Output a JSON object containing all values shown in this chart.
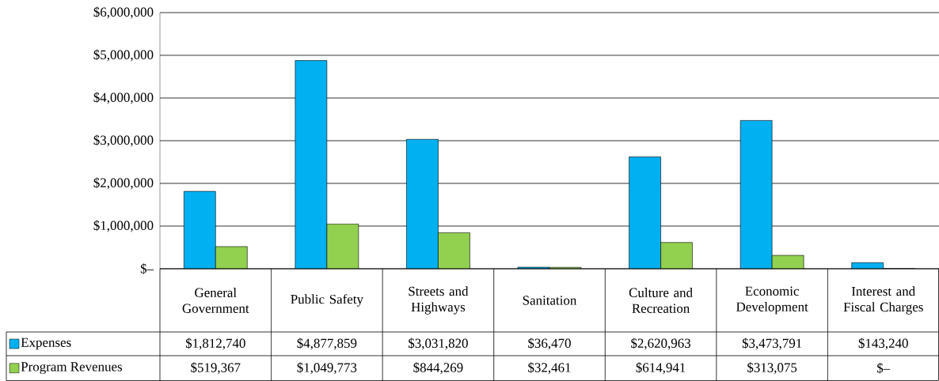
{
  "chart_data": {
    "type": "bar",
    "categories": [
      "General Government",
      "Public Safety",
      "Streets and Highways",
      "Sanitation",
      "Culture and Recreation",
      "Economic Development",
      "Interest and Fiscal Charges"
    ],
    "series": [
      {
        "name": "Expenses",
        "color": "#00b0f0",
        "values": [
          1812740,
          4877859,
          3031820,
          36470,
          2620963,
          3473791,
          143240
        ],
        "value_labels": [
          "$1,812,740",
          "$4,877,859",
          "$3,031,820",
          "$36,470",
          "$2,620,963",
          "$3,473,791",
          "$143,240"
        ]
      },
      {
        "name": "Program Revenues",
        "color": "#92d050",
        "values": [
          519367,
          1049773,
          844269,
          32461,
          614941,
          313075,
          0
        ],
        "value_labels": [
          "$519,367",
          "$1,049,773",
          "$844,269",
          "$32,461",
          "$614,941",
          "$313,075",
          "$–"
        ]
      }
    ],
    "ylim": [
      0,
      6000000
    ],
    "yticks": [
      {
        "value": 0,
        "label": "$–"
      },
      {
        "value": 1000000,
        "label": "$1,000,000"
      },
      {
        "value": 2000000,
        "label": "$2,000,000"
      },
      {
        "value": 3000000,
        "label": "$3,000,000"
      },
      {
        "value": 4000000,
        "label": "$4,000,000"
      },
      {
        "value": 5000000,
        "label": "$5,000,000"
      },
      {
        "value": 6000000,
        "label": "$6,000,000"
      }
    ],
    "grid": "y",
    "legend": "bottom"
  }
}
